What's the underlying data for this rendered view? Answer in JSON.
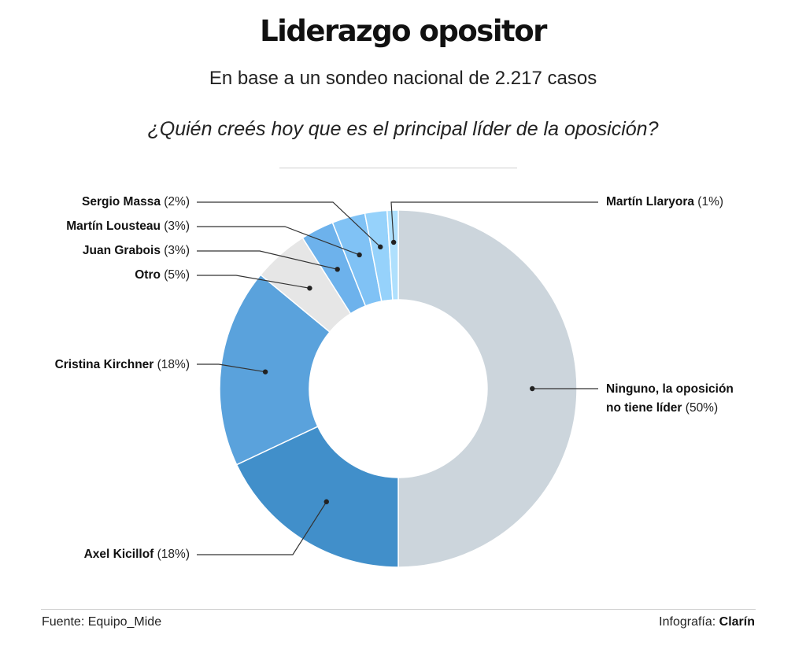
{
  "header": {
    "title": "Liderazgo opositor",
    "subtitle": "En base a un sondeo nacional de 2.217 casos",
    "question": "¿Quién creés hoy que es el principal líder de la oposición?"
  },
  "footer": {
    "source": "Fuente: Equipo_Mide",
    "credit_prefix": "Infografía: ",
    "credit_name": "Clarín"
  },
  "chart_data": {
    "type": "pie",
    "variant": "donut",
    "title": "Liderazgo opositor",
    "slices": [
      {
        "name": "Ninguno, la oposición no tiene líder",
        "name_line1": "Ninguno, la oposición",
        "name_line2": "no tiene líder",
        "pct_label": "(50%)",
        "value": 50,
        "color": "#ccd5dc"
      },
      {
        "name": "Axel Kicillof",
        "pct_label": "(18%)",
        "value": 18,
        "color": "#418fca"
      },
      {
        "name": "Cristina Kirchner",
        "pct_label": "(18%)",
        "value": 18,
        "color": "#5aa2dc"
      },
      {
        "name": "Otro",
        "pct_label": "(5%)",
        "value": 5,
        "color": "#e6e6e6"
      },
      {
        "name": "Juan Grabois",
        "pct_label": "(3%)",
        "value": 3,
        "color": "#6db2ec"
      },
      {
        "name": "Martín Lousteau",
        "pct_label": "(3%)",
        "value": 3,
        "color": "#80c2f5"
      },
      {
        "name": "Sergio Massa",
        "pct_label": "(2%)",
        "value": 2,
        "color": "#96d2fb"
      },
      {
        "name": "Martín Llaryora",
        "pct_label": "(1%)",
        "value": 1,
        "color": "#afe0fd"
      }
    ]
  }
}
